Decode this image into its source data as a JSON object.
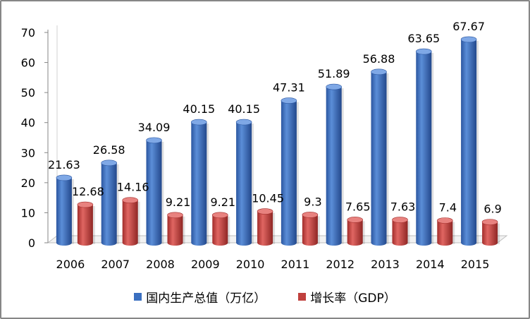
{
  "chart_data": {
    "type": "bar",
    "categories": [
      "2006",
      "2007",
      "2008",
      "2009",
      "2010",
      "2011",
      "2012",
      "2013",
      "2014",
      "2015"
    ],
    "series": [
      {
        "name": "国内生产总值（万亿）",
        "values": [
          21.63,
          26.58,
          34.09,
          40.15,
          40.15,
          47.31,
          51.89,
          56.88,
          63.65,
          67.67
        ],
        "labels": [
          "21.63",
          "26.58",
          "34.09",
          "40.15",
          "40.15",
          "47.31",
          "51.89",
          "56.88",
          "63.65",
          "67.67"
        ],
        "color": "#3a6fc0"
      },
      {
        "name": "增长率（GDP）",
        "values": [
          12.68,
          14.16,
          9.21,
          9.21,
          10.45,
          9.3,
          7.65,
          7.63,
          7.4,
          6.9
        ],
        "labels": [
          "12.68",
          "14.16",
          "9.21",
          "9.21",
          "10.45",
          "9.3",
          "7.65",
          "7.63",
          "7.4",
          "6.9"
        ],
        "color": "#c0403d"
      }
    ],
    "ylim": [
      0,
      70
    ],
    "yticks": [
      "0",
      "10",
      "20",
      "30",
      "40",
      "50",
      "60",
      "70"
    ],
    "title": "",
    "xlabel": "",
    "ylabel": "",
    "legend": "bottom"
  }
}
